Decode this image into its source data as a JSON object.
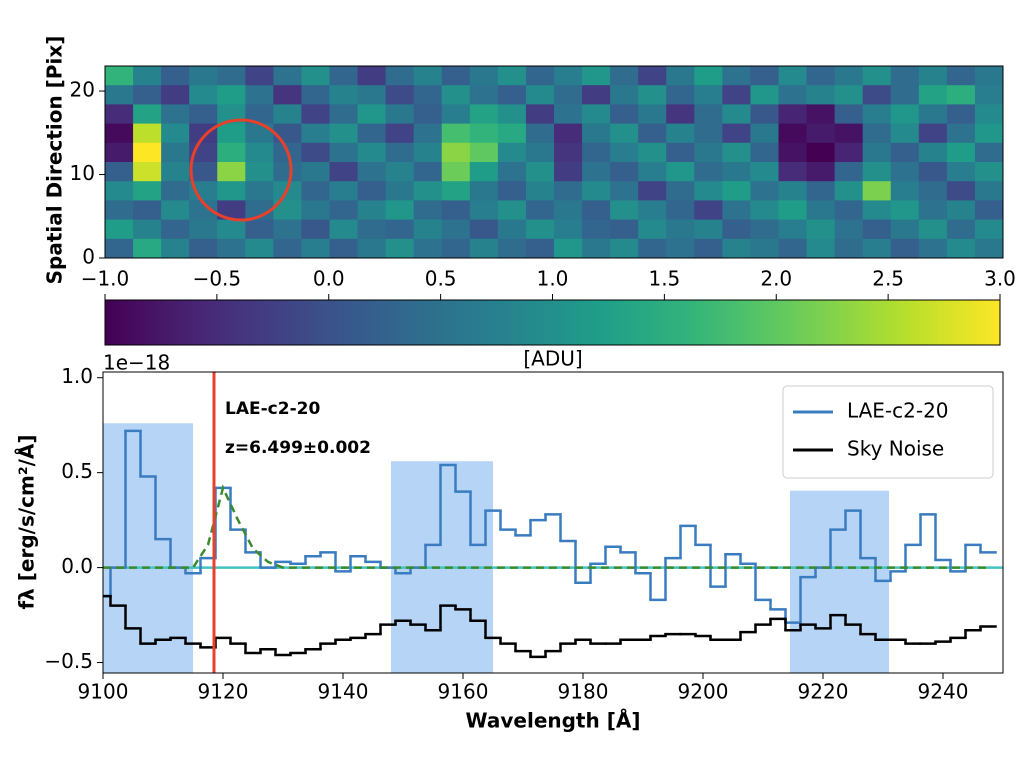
{
  "chart_data": [
    {
      "type": "heatmap",
      "ylabel": "Spatial Direction [Pix]",
      "ylim": [
        0,
        23
      ],
      "yticks": [
        0,
        10,
        20
      ],
      "colormap": "viridis",
      "colorbar": {
        "label": "[ADU]",
        "lim": [
          -1,
          3
        ],
        "ticks": [
          {
            "value": -1,
            "label": "−1.0"
          },
          {
            "value": -0.5,
            "label": "−0.5"
          },
          {
            "value": 0,
            "label": "0.0"
          },
          {
            "value": 0.5,
            "label": "0.5"
          },
          {
            "value": 1,
            "label": "1.0"
          },
          {
            "value": 1.5,
            "label": "1.5"
          },
          {
            "value": 2,
            "label": "2.0"
          },
          {
            "value": 2.5,
            "label": "2.5"
          },
          {
            "value": 3,
            "label": "3.0"
          }
        ]
      },
      "z": [
        [
          1.6,
          0.8,
          0.2,
          0.6,
          0.4,
          -0.2,
          0.5,
          1.0,
          0.3,
          -0.3,
          0.4,
          0.8,
          0.2,
          0.6,
          1.0,
          0.3,
          0.7,
          1.1,
          0.4,
          -0.2,
          0.6,
          1.2,
          0.5,
          0.2,
          0.9,
          0.3,
          0.6,
          1.0,
          0.4,
          0.8,
          0.3,
          0.6
        ],
        [
          0.6,
          0.2,
          -0.3,
          0.9,
          1.2,
          0.5,
          -0.4,
          0.3,
          0.8,
          0.6,
          -0.1,
          0.3,
          1.0,
          0.5,
          0.2,
          0.9,
          0.4,
          -0.3,
          0.6,
          1.0,
          0.3,
          0.7,
          -0.2,
          1.1,
          0.5,
          0.8,
          1.0,
          -0.1,
          0.4,
          1.3,
          1.5,
          0.7
        ],
        [
          -0.5,
          1.3,
          0.5,
          0.2,
          1.0,
          0.3,
          0.8,
          -0.2,
          0.4,
          1.1,
          0.6,
          0.2,
          0.7,
          1.3,
          1.0,
          -0.3,
          0.5,
          0.9,
          0.2,
          0.6,
          -0.4,
          0.4,
          0.9,
          0.1,
          -0.6,
          -0.8,
          0.2,
          0.7,
          1.1,
          0.6,
          0.2,
          0.9
        ],
        [
          -0.9,
          2.6,
          0.9,
          -0.3,
          1.2,
          0.6,
          0.1,
          0.7,
          1.0,
          0.3,
          -0.2,
          0.5,
          1.8,
          1.6,
          1.4,
          0.4,
          -0.5,
          0.6,
          1.0,
          0.2,
          0.8,
          0.4,
          -0.2,
          0.6,
          -0.9,
          -0.7,
          -0.8,
          0.4,
          0.9,
          -0.2,
          0.5,
          1.1
        ],
        [
          -0.7,
          3.0,
          0.6,
          -0.2,
          1.5,
          0.9,
          0.3,
          -0.1,
          0.5,
          0.9,
          0.4,
          0.8,
          2.3,
          2.0,
          0.9,
          0.6,
          -0.4,
          0.3,
          0.7,
          1.0,
          0.2,
          0.6,
          1.0,
          0.3,
          -0.8,
          -1.0,
          -0.6,
          0.6,
          0.2,
          0.8,
          1.2,
          0.4
        ],
        [
          0.2,
          2.7,
          0.8,
          0.1,
          2.3,
          1.0,
          0.4,
          0.6,
          -0.2,
          0.5,
          0.8,
          0.3,
          2.1,
          1.2,
          0.5,
          1.0,
          -0.3,
          0.5,
          0.2,
          0.7,
          1.1,
          0.4,
          0.6,
          0.9,
          -0.5,
          -0.7,
          0.3,
          1.0,
          0.5,
          0.1,
          0.7,
          1.0
        ],
        [
          0.9,
          1.3,
          0.4,
          0.7,
          1.1,
          0.6,
          0.9,
          0.3,
          0.7,
          0.2,
          0.6,
          1.0,
          1.3,
          0.6,
          0.2,
          0.8,
          0.4,
          0.9,
          0.5,
          -0.2,
          0.4,
          0.9,
          1.2,
          0.5,
          0.8,
          0.3,
          1.0,
          2.2,
          0.7,
          0.4,
          -0.1,
          0.6
        ],
        [
          0.4,
          0.2,
          0.9,
          0.5,
          -0.3,
          0.4,
          1.0,
          0.6,
          0.3,
          0.8,
          1.1,
          0.4,
          0.2,
          0.7,
          1.0,
          0.3,
          0.6,
          0.2,
          1.0,
          0.7,
          0.3,
          -0.2,
          0.5,
          0.9,
          1.2,
          0.6,
          0.3,
          0.9,
          1.1,
          0.5,
          0.8,
          0.2
        ],
        [
          1.2,
          0.8,
          0.3,
          0.6,
          0.9,
          0.2,
          0.5,
          0.1,
          0.9,
          0.4,
          0.3,
          0.8,
          0.5,
          0.1,
          0.6,
          1.0,
          0.7,
          0.3,
          0.2,
          0.9,
          0.6,
          0.8,
          0.2,
          0.4,
          0.7,
          1.0,
          0.5,
          0.2,
          0.6,
          1.0,
          0.4,
          0.9
        ],
        [
          0.3,
          1.4,
          0.8,
          0.2,
          0.5,
          0.9,
          0.3,
          0.7,
          0.2,
          0.6,
          1.0,
          0.5,
          0.3,
          0.8,
          0.4,
          0.2,
          1.1,
          0.6,
          0.9,
          0.3,
          0.5,
          0.2,
          0.8,
          0.6,
          0.3,
          0.9,
          0.4,
          0.7,
          0.2,
          0.5,
          0.9,
          0.6
        ]
      ]
    },
    {
      "type": "line",
      "xlabel": "Wavelength [Å]",
      "ylabel": "fλ  [erg/s/cm²/Å]",
      "y_multiplier": "1e−18",
      "xlim": [
        9100,
        9250
      ],
      "ylim": [
        -0.555,
        1.03
      ],
      "xticks": [
        9100,
        9120,
        9140,
        9160,
        9180,
        9200,
        9220,
        9240
      ],
      "yticks": [
        {
          "value": -0.5,
          "label": "−0.5"
        },
        {
          "value": 0,
          "label": "0.0"
        },
        {
          "value": 0.5,
          "label": "0.5"
        },
        {
          "value": 1,
          "label": "1.0"
        }
      ],
      "legend": "upper right",
      "annotations": [
        "LAE-c2-20",
        "z=6.499±0.002"
      ],
      "vlines": [
        {
          "value": 9118.5,
          "color": "#e8402a"
        }
      ],
      "hlines": [
        {
          "value": 0,
          "color": "#40c4c4"
        }
      ],
      "spans": [
        {
          "x0": 9100,
          "x1": 9115,
          "top": 0.76,
          "color": "#b6d4f6"
        },
        {
          "x0": 9148,
          "x1": 9165,
          "top": 0.56,
          "color": "#b6d4f6"
        },
        {
          "x0": 9214.5,
          "x1": 9231,
          "top": 0.405,
          "color": "#b6d4f6"
        }
      ],
      "x": [
        9100,
        9102.5,
        9105,
        9107.5,
        9110,
        9112.5,
        9115,
        9117.5,
        9120,
        9122.5,
        9125,
        9127.5,
        9130,
        9132.5,
        9135,
        9137.5,
        9140,
        9142.5,
        9145,
        9147.5,
        9150,
        9152.5,
        9155,
        9157.5,
        9160,
        9162.5,
        9165,
        9167.5,
        9170,
        9172.5,
        9175,
        9177.5,
        9180,
        9182.5,
        9185,
        9187.5,
        9190,
        9192.5,
        9195,
        9197.5,
        9200,
        9202.5,
        9205,
        9207.5,
        9210,
        9212.5,
        9215,
        9217.5,
        9220,
        9222.5,
        9225,
        9227.5,
        9230,
        9232.5,
        9235,
        9237.5,
        9240,
        9242.5,
        9245,
        9247.5
      ],
      "series": [
        {
          "name": "LAE-c2-20",
          "color": "#3a7cc0",
          "step": true,
          "values": [
            -0.15,
            0.0,
            0.72,
            0.48,
            0.15,
            0.0,
            -0.03,
            0.05,
            0.42,
            0.2,
            0.08,
            0.0,
            0.03,
            0.02,
            0.06,
            0.08,
            -0.02,
            0.06,
            0.03,
            0.0,
            -0.03,
            0.0,
            0.12,
            0.54,
            0.4,
            0.12,
            0.3,
            0.2,
            0.17,
            0.25,
            0.28,
            0.14,
            -0.08,
            0.02,
            0.11,
            0.08,
            -0.03,
            -0.17,
            0.05,
            0.22,
            0.12,
            -0.1,
            0.07,
            0.02,
            -0.17,
            -0.22,
            -0.29,
            -0.05,
            0.0,
            0.2,
            0.3,
            0.05,
            -0.07,
            -0.02,
            0.12,
            0.28,
            0.04,
            -0.02,
            0.12,
            0.08
          ]
        },
        {
          "name": "Sky Noise",
          "color": "#000000",
          "step": true,
          "values": [
            -0.15,
            -0.2,
            -0.32,
            -0.4,
            -0.38,
            -0.37,
            -0.4,
            -0.42,
            -0.37,
            -0.4,
            -0.45,
            -0.43,
            -0.46,
            -0.45,
            -0.43,
            -0.4,
            -0.38,
            -0.37,
            -0.35,
            -0.3,
            -0.28,
            -0.3,
            -0.33,
            -0.2,
            -0.22,
            -0.28,
            -0.37,
            -0.4,
            -0.44,
            -0.47,
            -0.44,
            -0.4,
            -0.38,
            -0.4,
            -0.4,
            -0.38,
            -0.38,
            -0.36,
            -0.35,
            -0.35,
            -0.36,
            -0.38,
            -0.38,
            -0.34,
            -0.3,
            -0.27,
            -0.33,
            -0.3,
            -0.32,
            -0.25,
            -0.3,
            -0.35,
            -0.38,
            -0.38,
            -0.4,
            -0.4,
            -0.39,
            -0.37,
            -0.33,
            -0.31
          ]
        },
        {
          "color": "#3b8a2c",
          "step": false,
          "dashed": true,
          "values": [
            0,
            0,
            0,
            0,
            0,
            0,
            0,
            0.12,
            0.42,
            0.25,
            0.1,
            0.03,
            0,
            0,
            0,
            0,
            0,
            0,
            0,
            0,
            0,
            0,
            0,
            0,
            0,
            0,
            0,
            0,
            0,
            0,
            0,
            0,
            0,
            0,
            0,
            0,
            0,
            0,
            0,
            0,
            0,
            0,
            0,
            0,
            0,
            0,
            0,
            0,
            0,
            0,
            0,
            0,
            0,
            0,
            0,
            0,
            0,
            0,
            0,
            0
          ]
        }
      ]
    }
  ]
}
